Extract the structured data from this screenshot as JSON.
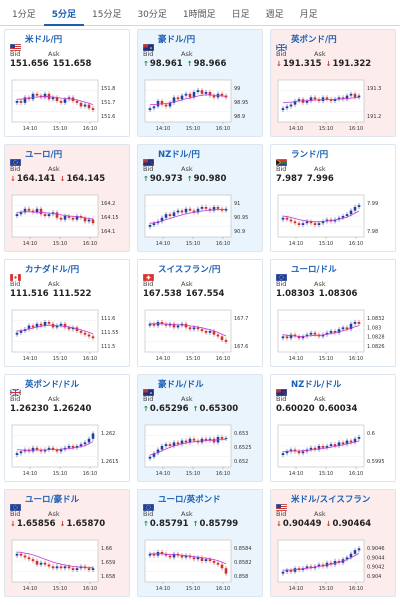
{
  "tabs": [
    {
      "label": "1分足",
      "active": false
    },
    {
      "label": "5分足",
      "active": true
    },
    {
      "label": "15分足",
      "active": false
    },
    {
      "label": "30分足",
      "active": false
    },
    {
      "label": "1時間足",
      "active": false
    },
    {
      "label": "日足",
      "active": false
    },
    {
      "label": "週足",
      "active": false
    },
    {
      "label": "月足",
      "active": false
    }
  ],
  "labels": {
    "bid": "Bid",
    "ask": "Ask"
  },
  "colors": {
    "accent": "#1a5fb4",
    "up": "#1a8a3a",
    "down": "#d0302a",
    "ma": "#c23bd6"
  },
  "cards": [
    {
      "pair": "米ドル/円",
      "flag": "us-flag-icon",
      "bid": "151.656",
      "ask": "151.658",
      "dir": "flat",
      "chart_data": {
        "type": "candlestick",
        "x_ticks": [
          "14:10",
          "15:10",
          "16:10"
        ],
        "y_ticks": [
          "151.8",
          "151.7",
          "151.6"
        ],
        "ylim": [
          151.56,
          151.84
        ],
        "trend": [
          0.5,
          0.45,
          0.6,
          0.55,
          0.7,
          0.65,
          0.6,
          0.7,
          0.55,
          0.6,
          0.5,
          0.45,
          0.55,
          0.6,
          0.5,
          0.45,
          0.35,
          0.4,
          0.3,
          0.25
        ],
        "ma": [
          0.55,
          0.55,
          0.56,
          0.57,
          0.6,
          0.61,
          0.62,
          0.63,
          0.62,
          0.61,
          0.6,
          0.58,
          0.57,
          0.56,
          0.55,
          0.53,
          0.5,
          0.47,
          0.44,
          0.4
        ]
      }
    },
    {
      "pair": "豪ドル/円",
      "flag": "au-flag-icon",
      "bid": "98.961",
      "ask": "98.966",
      "dir": "up",
      "chart_data": {
        "type": "candlestick",
        "x_ticks": [
          "14:10",
          "15:10",
          "16:10"
        ],
        "y_ticks": [
          "99",
          "98.95",
          "98.9"
        ],
        "ylim": [
          98.86,
          99.02
        ],
        "trend": [
          0.3,
          0.35,
          0.5,
          0.4,
          0.35,
          0.45,
          0.6,
          0.55,
          0.65,
          0.7,
          0.6,
          0.75,
          0.8,
          0.7,
          0.75,
          0.65,
          0.6,
          0.7,
          0.65,
          0.6
        ],
        "ma": [
          0.4,
          0.4,
          0.41,
          0.42,
          0.43,
          0.45,
          0.48,
          0.5,
          0.53,
          0.56,
          0.58,
          0.61,
          0.64,
          0.66,
          0.67,
          0.67,
          0.66,
          0.65,
          0.64,
          0.63
        ]
      }
    },
    {
      "pair": "英ポンド/円",
      "flag": "gb-flag-icon",
      "bid": "191.315",
      "ask": "191.322",
      "dir": "down",
      "chart_data": {
        "type": "candlestick",
        "x_ticks": [
          "14:10",
          "15:10",
          "16:10"
        ],
        "y_ticks": [
          "191.3",
          "191.2"
        ],
        "ylim": [
          191.16,
          191.4
        ],
        "trend": [
          0.3,
          0.35,
          0.4,
          0.5,
          0.55,
          0.45,
          0.5,
          0.6,
          0.55,
          0.5,
          0.6,
          0.55,
          0.5,
          0.55,
          0.6,
          0.55,
          0.65,
          0.7,
          0.6,
          0.65
        ],
        "ma": [
          0.45,
          0.46,
          0.47,
          0.48,
          0.5,
          0.5,
          0.51,
          0.52,
          0.53,
          0.53,
          0.54,
          0.54,
          0.54,
          0.55,
          0.55,
          0.56,
          0.57,
          0.58,
          0.59,
          0.6
        ]
      }
    },
    {
      "pair": "ユーロ/円",
      "flag": "eu-flag-icon",
      "bid": "164.141",
      "ask": "164.145",
      "dir": "down",
      "chart_data": {
        "type": "candlestick",
        "x_ticks": [
          "14:10",
          "15:10",
          "16:10"
        ],
        "y_ticks": [
          "164.2",
          "164.15",
          "164.1"
        ],
        "ylim": [
          164.06,
          164.24
        ],
        "trend": [
          0.55,
          0.6,
          0.7,
          0.65,
          0.6,
          0.7,
          0.55,
          0.5,
          0.55,
          0.6,
          0.45,
          0.4,
          0.5,
          0.45,
          0.4,
          0.5,
          0.45,
          0.35,
          0.4,
          0.3
        ],
        "ma": [
          0.6,
          0.61,
          0.62,
          0.62,
          0.61,
          0.6,
          0.6,
          0.59,
          0.58,
          0.57,
          0.55,
          0.53,
          0.52,
          0.5,
          0.49,
          0.48,
          0.47,
          0.45,
          0.43,
          0.41
        ]
      }
    },
    {
      "pair": "NZドル/円",
      "flag": "nz-flag-icon",
      "bid": "90.973",
      "ask": "90.980",
      "dir": "up",
      "chart_data": {
        "type": "candlestick",
        "x_ticks": [
          "14:10",
          "15:10",
          "16:10"
        ],
        "y_ticks": [
          "91",
          "90.95",
          "90.9"
        ],
        "ylim": [
          90.86,
          91.02
        ],
        "trend": [
          0.25,
          0.3,
          0.35,
          0.45,
          0.55,
          0.5,
          0.6,
          0.65,
          0.6,
          0.7,
          0.65,
          0.6,
          0.7,
          0.75,
          0.7,
          0.65,
          0.75,
          0.7,
          0.65,
          0.7
        ],
        "ma": [
          0.3,
          0.31,
          0.33,
          0.36,
          0.4,
          0.43,
          0.47,
          0.5,
          0.53,
          0.56,
          0.58,
          0.6,
          0.62,
          0.64,
          0.65,
          0.66,
          0.67,
          0.68,
          0.68,
          0.68
        ]
      }
    },
    {
      "pair": "ランド/円",
      "flag": "za-flag-icon",
      "bid": "7.987",
      "ask": "7.996",
      "dir": "flat",
      "chart_data": {
        "type": "candlestick",
        "x_ticks": [
          "14:10",
          "15:10",
          "16:10"
        ],
        "y_ticks": [
          "7.99",
          "7.98"
        ],
        "ylim": [
          7.975,
          7.995
        ],
        "trend": [
          0.45,
          0.4,
          0.35,
          0.3,
          0.25,
          0.3,
          0.35,
          0.3,
          0.25,
          0.3,
          0.35,
          0.4,
          0.35,
          0.4,
          0.45,
          0.5,
          0.55,
          0.65,
          0.75,
          0.8
        ],
        "ma": [
          0.5,
          0.48,
          0.46,
          0.43,
          0.4,
          0.38,
          0.36,
          0.35,
          0.34,
          0.34,
          0.35,
          0.36,
          0.37,
          0.39,
          0.41,
          0.44,
          0.47,
          0.52,
          0.58,
          0.64
        ]
      }
    },
    {
      "pair": "カナダドル/円",
      "flag": "ca-flag-icon",
      "bid": "111.516",
      "ask": "111.522",
      "dir": "flat",
      "chart_data": {
        "type": "candlestick",
        "x_ticks": [
          "14:10",
          "15:10",
          "16:10"
        ],
        "y_ticks": [
          "111.6",
          "111.55",
          "111.5"
        ],
        "ylim": [
          111.47,
          111.62
        ],
        "trend": [
          0.45,
          0.5,
          0.55,
          0.65,
          0.6,
          0.7,
          0.65,
          0.75,
          0.7,
          0.6,
          0.65,
          0.7,
          0.6,
          0.55,
          0.6,
          0.5,
          0.45,
          0.4,
          0.35,
          0.3
        ],
        "ma": [
          0.5,
          0.51,
          0.53,
          0.56,
          0.58,
          0.61,
          0.63,
          0.65,
          0.66,
          0.66,
          0.65,
          0.64,
          0.63,
          0.61,
          0.59,
          0.56,
          0.53,
          0.5,
          0.46,
          0.42
        ]
      }
    },
    {
      "pair": "スイスフラン/円",
      "flag": "ch-flag-icon",
      "bid": "167.538",
      "ask": "167.554",
      "dir": "flat",
      "chart_data": {
        "type": "candlestick",
        "x_ticks": [
          "14:10",
          "15:10",
          "16:10"
        ],
        "y_ticks": [
          "167.7",
          "167.6"
        ],
        "ylim": [
          167.5,
          167.78
        ],
        "trend": [
          0.7,
          0.65,
          0.75,
          0.7,
          0.65,
          0.7,
          0.6,
          0.65,
          0.7,
          0.6,
          0.55,
          0.6,
          0.55,
          0.5,
          0.45,
          0.5,
          0.4,
          0.35,
          0.25,
          0.2
        ],
        "ma": [
          0.7,
          0.7,
          0.7,
          0.7,
          0.69,
          0.69,
          0.68,
          0.67,
          0.67,
          0.66,
          0.64,
          0.63,
          0.61,
          0.59,
          0.56,
          0.54,
          0.5,
          0.46,
          0.41,
          0.36
        ]
      }
    },
    {
      "pair": "ユーロ/ドル",
      "flag": "eu-flag-icon",
      "bid": "1.08303",
      "ask": "1.08306",
      "dir": "flat",
      "chart_data": {
        "type": "candlestick",
        "x_ticks": [
          "14:10",
          "15:10",
          "16:10"
        ],
        "y_ticks": [
          "1.0832",
          "1.083",
          "1.0828",
          "1.0826"
        ],
        "ylim": [
          1.0824,
          1.0834
        ],
        "trend": [
          0.35,
          0.3,
          0.4,
          0.35,
          0.3,
          0.35,
          0.4,
          0.45,
          0.4,
          0.35,
          0.4,
          0.45,
          0.5,
          0.45,
          0.55,
          0.6,
          0.55,
          0.7,
          0.75,
          0.7
        ],
        "ma": [
          0.4,
          0.38,
          0.37,
          0.36,
          0.35,
          0.35,
          0.36,
          0.37,
          0.38,
          0.38,
          0.39,
          0.41,
          0.43,
          0.45,
          0.48,
          0.51,
          0.54,
          0.58,
          0.62,
          0.65
        ]
      }
    },
    {
      "pair": "英ポンド/ドル",
      "flag": "gb-flag-icon",
      "bid": "1.26230",
      "ask": "1.26240",
      "dir": "flat",
      "chart_data": {
        "type": "candlestick",
        "x_ticks": [
          "14:10",
          "15:10",
          "16:10"
        ],
        "y_ticks": [
          "1.262",
          "1.2615"
        ],
        "ylim": [
          1.2612,
          1.2628
        ],
        "trend": [
          0.3,
          0.35,
          0.4,
          0.35,
          0.45,
          0.4,
          0.35,
          0.4,
          0.45,
          0.4,
          0.35,
          0.4,
          0.45,
          0.5,
          0.45,
          0.5,
          0.55,
          0.6,
          0.7,
          0.85
        ],
        "ma": [
          0.4,
          0.39,
          0.38,
          0.38,
          0.39,
          0.39,
          0.39,
          0.39,
          0.4,
          0.4,
          0.4,
          0.41,
          0.42,
          0.43,
          0.44,
          0.46,
          0.48,
          0.51,
          0.56,
          0.62
        ]
      }
    },
    {
      "pair": "豪ドル/ドル",
      "flag": "au-flag-icon",
      "bid": "0.65296",
      "ask": "0.65300",
      "dir": "up",
      "chart_data": {
        "type": "candlestick",
        "x_ticks": [
          "14:10",
          "15:10",
          "16:10"
        ],
        "y_ticks": [
          "0.653",
          "0.6525",
          "0.652"
        ],
        "ylim": [
          0.6517,
          0.6533
        ],
        "trend": [
          0.2,
          0.3,
          0.4,
          0.5,
          0.55,
          0.5,
          0.6,
          0.55,
          0.65,
          0.6,
          0.7,
          0.65,
          0.6,
          0.7,
          0.65,
          0.7,
          0.6,
          0.75,
          0.7,
          0.72
        ],
        "ma": [
          0.25,
          0.28,
          0.32,
          0.37,
          0.42,
          0.46,
          0.5,
          0.53,
          0.56,
          0.58,
          0.6,
          0.62,
          0.63,
          0.64,
          0.65,
          0.66,
          0.66,
          0.67,
          0.68,
          0.69
        ]
      }
    },
    {
      "pair": "NZドル/ドル",
      "flag": "nz-flag-icon",
      "bid": "0.60020",
      "ask": "0.60034",
      "dir": "flat",
      "chart_data": {
        "type": "candlestick",
        "x_ticks": [
          "14:10",
          "15:10",
          "16:10"
        ],
        "y_ticks": [
          "0.6",
          "0.5995"
        ],
        "ylim": [
          0.5992,
          0.6004
        ],
        "trend": [
          0.3,
          0.35,
          0.4,
          0.35,
          0.3,
          0.35,
          0.4,
          0.45,
          0.4,
          0.5,
          0.45,
          0.5,
          0.55,
          0.5,
          0.6,
          0.55,
          0.65,
          0.6,
          0.7,
          0.75
        ],
        "ma": [
          0.35,
          0.35,
          0.36,
          0.36,
          0.36,
          0.37,
          0.38,
          0.39,
          0.4,
          0.42,
          0.43,
          0.45,
          0.47,
          0.49,
          0.51,
          0.53,
          0.56,
          0.58,
          0.61,
          0.64
        ]
      }
    },
    {
      "pair": "ユーロ/豪ドル",
      "flag": "eu-flag-icon",
      "bid": "1.65856",
      "ask": "1.65870",
      "dir": "down",
      "chart_data": {
        "type": "candlestick",
        "x_ticks": [
          "14:10",
          "15:10",
          "16:10"
        ],
        "y_ticks": [
          "1.66",
          "1.659",
          "1.658"
        ],
        "ylim": [
          1.6575,
          1.6605
        ],
        "trend": [
          0.7,
          0.65,
          0.6,
          0.55,
          0.5,
          0.4,
          0.45,
          0.4,
          0.35,
          0.3,
          0.35,
          0.3,
          0.35,
          0.3,
          0.25,
          0.3,
          0.35,
          0.3,
          0.25,
          0.3
        ],
        "ma": [
          0.75,
          0.74,
          0.72,
          0.7,
          0.67,
          0.63,
          0.59,
          0.55,
          0.51,
          0.47,
          0.44,
          0.41,
          0.39,
          0.37,
          0.35,
          0.34,
          0.33,
          0.33,
          0.32,
          0.32
        ]
      }
    },
    {
      "pair": "ユーロ/英ポンド",
      "flag": "eu-flag-icon",
      "bid": "0.85791",
      "ask": "0.85799",
      "dir": "up",
      "chart_data": {
        "type": "candlestick",
        "x_ticks": [
          "14:10",
          "15:10",
          "16:10"
        ],
        "y_ticks": [
          "0.8584",
          "0.8582",
          "0.858"
        ],
        "ylim": [
          0.8578,
          0.8586
        ],
        "trend": [
          0.7,
          0.65,
          0.75,
          0.7,
          0.65,
          0.6,
          0.7,
          0.65,
          0.6,
          0.65,
          0.6,
          0.55,
          0.6,
          0.5,
          0.55,
          0.5,
          0.45,
          0.4,
          0.3,
          0.15
        ],
        "ma": [
          0.7,
          0.7,
          0.7,
          0.7,
          0.69,
          0.68,
          0.68,
          0.67,
          0.66,
          0.65,
          0.64,
          0.62,
          0.61,
          0.59,
          0.58,
          0.56,
          0.54,
          0.51,
          0.47,
          0.42
        ]
      }
    },
    {
      "pair": "米ドル/スイスフラン",
      "flag": "us-flag-icon",
      "bid": "0.90449",
      "ask": "0.90464",
      "dir": "down",
      "chart_data": {
        "type": "candlestick",
        "x_ticks": [
          "14:10",
          "15:10",
          "16:10"
        ],
        "y_ticks": [
          "0.9046",
          "0.9044",
          "0.9042",
          "0.904"
        ],
        "ylim": [
          0.9038,
          0.9048
        ],
        "trend": [
          0.2,
          0.25,
          0.2,
          0.3,
          0.25,
          0.3,
          0.35,
          0.3,
          0.35,
          0.4,
          0.35,
          0.45,
          0.4,
          0.5,
          0.45,
          0.55,
          0.6,
          0.7,
          0.8,
          0.85
        ],
        "ma": [
          0.25,
          0.25,
          0.25,
          0.26,
          0.27,
          0.28,
          0.3,
          0.31,
          0.33,
          0.35,
          0.36,
          0.39,
          0.41,
          0.44,
          0.46,
          0.5,
          0.54,
          0.59,
          0.65,
          0.71
        ]
      }
    }
  ]
}
